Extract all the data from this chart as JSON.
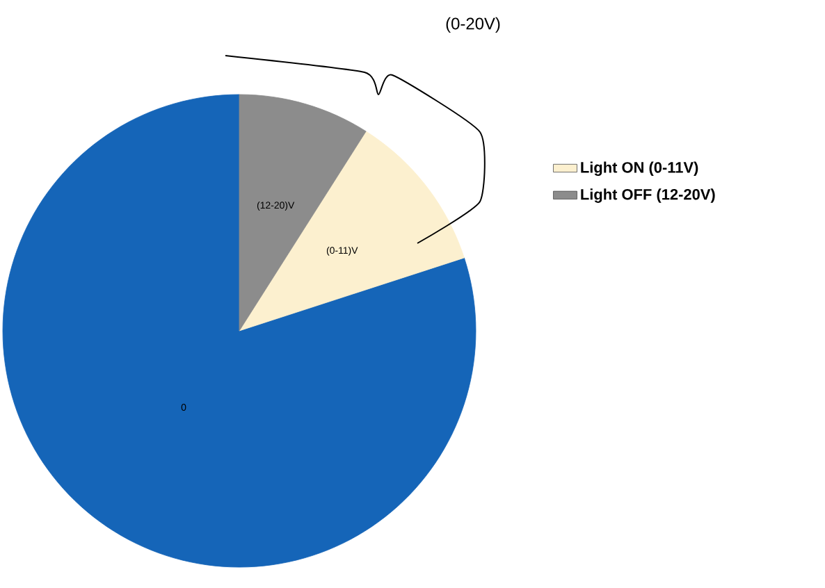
{
  "chart_data": {
    "type": "pie",
    "categories": [
      null,
      "Light ON (0-11V)",
      "Light OFF (12-20V)"
    ],
    "values": [
      80,
      11,
      9
    ],
    "colors": [
      "#1565b8",
      "#fcf0cf",
      "#8c8c8c"
    ],
    "legend": "right",
    "annotations": [
      "(0-20V)",
      "0",
      "(0-11)V",
      "(12-20)V"
    ]
  }
}
